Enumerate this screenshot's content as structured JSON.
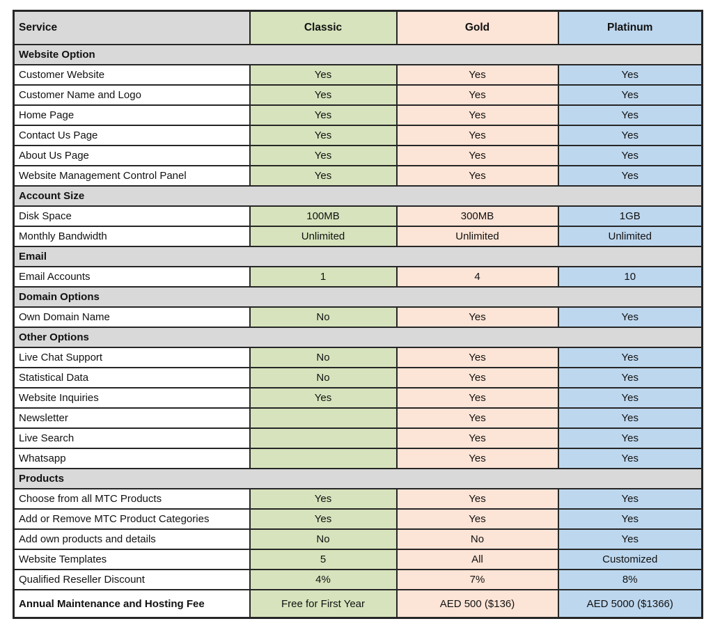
{
  "table": {
    "header": {
      "service": "Service",
      "classic": "Classic",
      "gold": "Gold",
      "platinum": "Platinum"
    },
    "colors": {
      "section_bg": "#d9d9d9",
      "classic_bg": "#d6e3bc",
      "gold_bg": "#fce4d6",
      "platinum_bg": "#bdd7ee",
      "border": "#262626"
    },
    "sections": [
      {
        "title": "Website Option",
        "rows": [
          {
            "service": "Customer Website",
            "classic": "Yes",
            "gold": "Yes",
            "platinum": "Yes"
          },
          {
            "service": "Customer Name and Logo",
            "classic": "Yes",
            "gold": "Yes",
            "platinum": "Yes"
          },
          {
            "service": "Home Page",
            "classic": "Yes",
            "gold": "Yes",
            "platinum": "Yes"
          },
          {
            "service": "Contact Us Page",
            "classic": "Yes",
            "gold": "Yes",
            "platinum": "Yes"
          },
          {
            "service": "About Us Page",
            "classic": "Yes",
            "gold": "Yes",
            "platinum": "Yes"
          },
          {
            "service": "Website Management Control Panel",
            "classic": "Yes",
            "gold": "Yes",
            "platinum": "Yes"
          }
        ]
      },
      {
        "title": "Account Size",
        "rows": [
          {
            "service": "Disk Space",
            "classic": "100MB",
            "gold": "300MB",
            "platinum": "1GB"
          },
          {
            "service": "Monthly Bandwidth",
            "classic": "Unlimited",
            "gold": "Unlimited",
            "platinum": "Unlimited"
          }
        ]
      },
      {
        "title": "Email",
        "rows": [
          {
            "service": "Email Accounts",
            "classic": "1",
            "gold": "4",
            "platinum": "10"
          }
        ]
      },
      {
        "title": "Domain Options",
        "rows": [
          {
            "service": "Own Domain Name",
            "classic": "No",
            "gold": "Yes",
            "platinum": "Yes"
          }
        ]
      },
      {
        "title": "Other Options",
        "rows": [
          {
            "service": "Live Chat Support",
            "classic": "No",
            "gold": "Yes",
            "platinum": "Yes"
          },
          {
            "service": "Statistical Data",
            "classic": "No",
            "gold": "Yes",
            "platinum": "Yes"
          },
          {
            "service": "Website Inquiries",
            "classic": "Yes",
            "gold": "Yes",
            "platinum": "Yes"
          },
          {
            "service": "Newsletter",
            "classic": "",
            "gold": "Yes",
            "platinum": "Yes"
          },
          {
            "service": "Live Search",
            "classic": "",
            "gold": "Yes",
            "platinum": "Yes"
          },
          {
            "service": "Whatsapp",
            "classic": "",
            "gold": "Yes",
            "platinum": "Yes"
          }
        ]
      },
      {
        "title": "Products",
        "rows": [
          {
            "service": "Choose from all MTC Products",
            "classic": "Yes",
            "gold": "Yes",
            "platinum": "Yes"
          },
          {
            "service": "Add or Remove MTC Product Categories",
            "classic": "Yes",
            "gold": "Yes",
            "platinum": "Yes"
          },
          {
            "service": "Add own products and details",
            "classic": "No",
            "gold": "No",
            "platinum": "Yes"
          },
          {
            "service": "Website Templates",
            "classic": "5",
            "gold": "All",
            "platinum": "Customized"
          },
          {
            "service": "Qualified Reseller Discount",
            "classic": "4%",
            "gold": "7%",
            "platinum": "8%"
          }
        ]
      }
    ],
    "footer": {
      "service": "Annual Maintenance and Hosting Fee",
      "classic": "Free for First Year",
      "gold": "AED 500 ($136)",
      "platinum": "AED 5000 ($1366)"
    }
  }
}
